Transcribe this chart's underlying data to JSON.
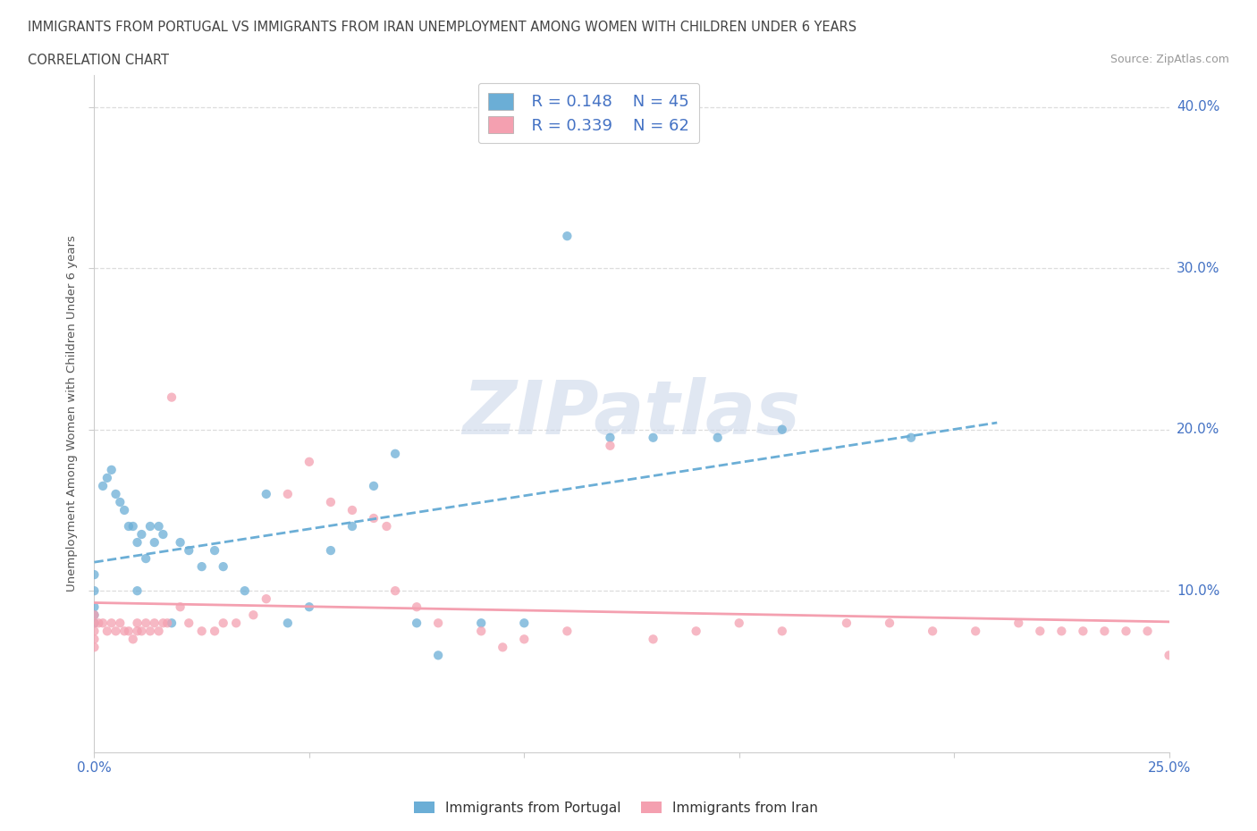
{
  "title_line1": "IMMIGRANTS FROM PORTUGAL VS IMMIGRANTS FROM IRAN UNEMPLOYMENT AMONG WOMEN WITH CHILDREN UNDER 6 YEARS",
  "title_line2": "CORRELATION CHART",
  "source": "Source: ZipAtlas.com",
  "ylabel": "Unemployment Among Women with Children Under 6 years",
  "xlim": [
    0.0,
    0.25
  ],
  "ylim": [
    0.0,
    0.42
  ],
  "ytick_right_labels": [
    "10.0%",
    "20.0%",
    "30.0%",
    "40.0%"
  ],
  "ytick_right_values": [
    0.1,
    0.2,
    0.3,
    0.4
  ],
  "color_portugal": "#6baed6",
  "color_iran": "#f4a0b0",
  "watermark_text": "ZIPatlas",
  "portugal_x": [
    0.0,
    0.0,
    0.0,
    0.0,
    0.0,
    0.002,
    0.003,
    0.004,
    0.005,
    0.006,
    0.007,
    0.008,
    0.009,
    0.01,
    0.01,
    0.011,
    0.012,
    0.013,
    0.014,
    0.015,
    0.016,
    0.018,
    0.02,
    0.022,
    0.025,
    0.028,
    0.03,
    0.035,
    0.04,
    0.045,
    0.05,
    0.055,
    0.06,
    0.065,
    0.07,
    0.075,
    0.08,
    0.09,
    0.1,
    0.11,
    0.12,
    0.13,
    0.145,
    0.16,
    0.19
  ],
  "portugal_y": [
    0.08,
    0.09,
    0.085,
    0.1,
    0.11,
    0.165,
    0.17,
    0.175,
    0.16,
    0.155,
    0.15,
    0.14,
    0.14,
    0.13,
    0.1,
    0.135,
    0.12,
    0.14,
    0.13,
    0.14,
    0.135,
    0.08,
    0.13,
    0.125,
    0.115,
    0.125,
    0.115,
    0.1,
    0.16,
    0.08,
    0.09,
    0.125,
    0.14,
    0.165,
    0.185,
    0.08,
    0.06,
    0.08,
    0.08,
    0.32,
    0.195,
    0.195,
    0.195,
    0.2,
    0.195
  ],
  "iran_x": [
    0.0,
    0.0,
    0.0,
    0.0,
    0.0,
    0.001,
    0.002,
    0.003,
    0.004,
    0.005,
    0.006,
    0.007,
    0.008,
    0.009,
    0.01,
    0.01,
    0.011,
    0.012,
    0.013,
    0.014,
    0.015,
    0.016,
    0.017,
    0.018,
    0.02,
    0.022,
    0.025,
    0.028,
    0.03,
    0.033,
    0.037,
    0.04,
    0.045,
    0.05,
    0.055,
    0.06,
    0.065,
    0.068,
    0.07,
    0.075,
    0.08,
    0.09,
    0.095,
    0.1,
    0.11,
    0.12,
    0.13,
    0.14,
    0.15,
    0.16,
    0.175,
    0.185,
    0.195,
    0.205,
    0.215,
    0.22,
    0.225,
    0.23,
    0.235,
    0.24,
    0.245,
    0.25
  ],
  "iran_y": [
    0.08,
    0.085,
    0.075,
    0.07,
    0.065,
    0.08,
    0.08,
    0.075,
    0.08,
    0.075,
    0.08,
    0.075,
    0.075,
    0.07,
    0.075,
    0.08,
    0.075,
    0.08,
    0.075,
    0.08,
    0.075,
    0.08,
    0.08,
    0.22,
    0.09,
    0.08,
    0.075,
    0.075,
    0.08,
    0.08,
    0.085,
    0.095,
    0.16,
    0.18,
    0.155,
    0.15,
    0.145,
    0.14,
    0.1,
    0.09,
    0.08,
    0.075,
    0.065,
    0.07,
    0.075,
    0.19,
    0.07,
    0.075,
    0.08,
    0.075,
    0.08,
    0.08,
    0.075,
    0.075,
    0.08,
    0.075,
    0.075,
    0.075,
    0.075,
    0.075,
    0.075,
    0.06
  ]
}
